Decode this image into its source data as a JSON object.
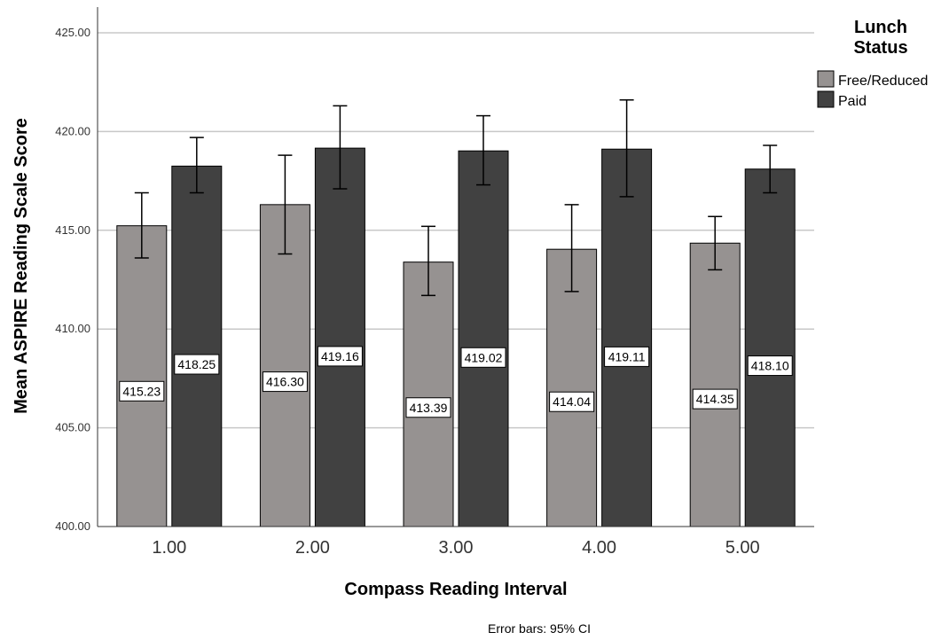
{
  "chart_data": {
    "type": "bar",
    "title": "",
    "xlabel": "Compass Reading Interval",
    "ylabel": "Mean ASPIRE Reading Scale Score",
    "categories": [
      "1.00",
      "2.00",
      "3.00",
      "4.00",
      "5.00"
    ],
    "ylim": [
      400,
      426
    ],
    "yticks": [
      "400.00",
      "405.00",
      "410.00",
      "415.00",
      "420.00",
      "425.00"
    ],
    "grid": "horizontal",
    "legend": {
      "title_line1": "Lunch",
      "title_line2": "Status",
      "placement": "top-right"
    },
    "footnote": "Error bars: 95% CI",
    "series": [
      {
        "name": "Free/Reduced",
        "color": "#969291",
        "values": [
          415.23,
          416.3,
          413.39,
          414.04,
          414.35
        ],
        "labels": [
          "415.23",
          "416.30",
          "413.39",
          "414.04",
          "414.35"
        ],
        "ci_low": [
          413.6,
          413.8,
          411.7,
          411.9,
          413.0
        ],
        "ci_high": [
          416.9,
          418.8,
          415.2,
          416.3,
          415.7
        ]
      },
      {
        "name": "Paid",
        "color": "#414141",
        "values": [
          418.25,
          419.16,
          419.02,
          419.11,
          418.1
        ],
        "labels": [
          "418.25",
          "419.16",
          "419.02",
          "419.11",
          "418.10"
        ],
        "ci_low": [
          416.9,
          417.1,
          417.3,
          416.7,
          416.9
        ],
        "ci_high": [
          419.7,
          421.3,
          420.8,
          421.6,
          419.3
        ]
      }
    ]
  }
}
